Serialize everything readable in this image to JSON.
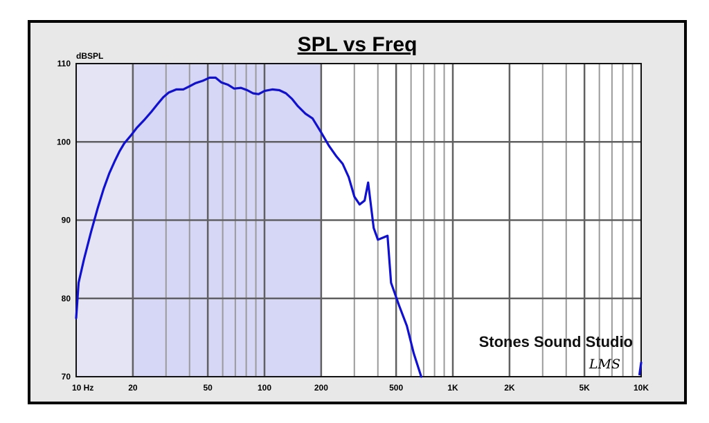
{
  "chart_data": {
    "type": "line",
    "title": "SPL vs Freq",
    "ylabel": "dBSPL",
    "xlabel": "",
    "xscale": "log",
    "xlim": [
      10,
      10000
    ],
    "ylim": [
      70,
      110
    ],
    "grid": true,
    "highlight_band": {
      "from": 20,
      "to": 200,
      "color": "#d6d6f6"
    },
    "x_tick_labels": [
      {
        "x": 10,
        "label": "10  Hz"
      },
      {
        "x": 20,
        "label": "20"
      },
      {
        "x": 50,
        "label": "50"
      },
      {
        "x": 100,
        "label": "100"
      },
      {
        "x": 200,
        "label": "200"
      },
      {
        "x": 500,
        "label": "500"
      },
      {
        "x": 1000,
        "label": "1K"
      },
      {
        "x": 2000,
        "label": "2K"
      },
      {
        "x": 5000,
        "label": "5K"
      },
      {
        "x": 10000,
        "label": "10K"
      }
    ],
    "y_tick_labels": [
      {
        "y": 110,
        "label": "110"
      },
      {
        "y": 100,
        "label": "100"
      },
      {
        "y": 90,
        "label": "90"
      },
      {
        "y": 80,
        "label": "80"
      },
      {
        "y": 70,
        "label": "70"
      }
    ],
    "annotations": {
      "studio": "Stones Sound Studio",
      "signature": "LMS"
    },
    "series": [
      {
        "color": "#1010d0",
        "points": [
          [
            10,
            77.5
          ],
          [
            10.3,
            82
          ],
          [
            11,
            85
          ],
          [
            12,
            88.5
          ],
          [
            13,
            91.5
          ],
          [
            14,
            94
          ],
          [
            15,
            96
          ],
          [
            16,
            97.5
          ],
          [
            17,
            98.8
          ],
          [
            18,
            99.8
          ],
          [
            19.5,
            100.8
          ],
          [
            21,
            101.8
          ],
          [
            23,
            102.8
          ],
          [
            25,
            103.8
          ],
          [
            27,
            104.8
          ],
          [
            29,
            105.7
          ],
          [
            31,
            106.3
          ],
          [
            34,
            106.7
          ],
          [
            37,
            106.7
          ],
          [
            40,
            107.1
          ],
          [
            43,
            107.5
          ],
          [
            47,
            107.8
          ],
          [
            51,
            108.2
          ],
          [
            55,
            108.2
          ],
          [
            59,
            107.6
          ],
          [
            64,
            107.3
          ],
          [
            69,
            106.8
          ],
          [
            75,
            106.9
          ],
          [
            81,
            106.6
          ],
          [
            87,
            106.2
          ],
          [
            93,
            106.1
          ],
          [
            100,
            106.5
          ],
          [
            110,
            106.7
          ],
          [
            120,
            106.6
          ],
          [
            130,
            106.2
          ],
          [
            140,
            105.5
          ],
          [
            150,
            104.6
          ],
          [
            165,
            103.6
          ],
          [
            180,
            103
          ],
          [
            200,
            101.2
          ],
          [
            220,
            99.5
          ],
          [
            240,
            98.2
          ],
          [
            260,
            97.2
          ],
          [
            280,
            95.5
          ],
          [
            300,
            93
          ],
          [
            320,
            92
          ],
          [
            340,
            92.5
          ],
          [
            355,
            94.8
          ],
          [
            380,
            89
          ],
          [
            400,
            87.5
          ],
          [
            430,
            87.8
          ],
          [
            450,
            88
          ],
          [
            470,
            82
          ],
          [
            520,
            79
          ],
          [
            570,
            76.5
          ],
          [
            620,
            73
          ],
          [
            680,
            70
          ]
        ]
      },
      {
        "color": "#1010d0",
        "points": [
          [
            9800,
            70.3
          ],
          [
            10000,
            71.8
          ]
        ]
      }
    ]
  }
}
